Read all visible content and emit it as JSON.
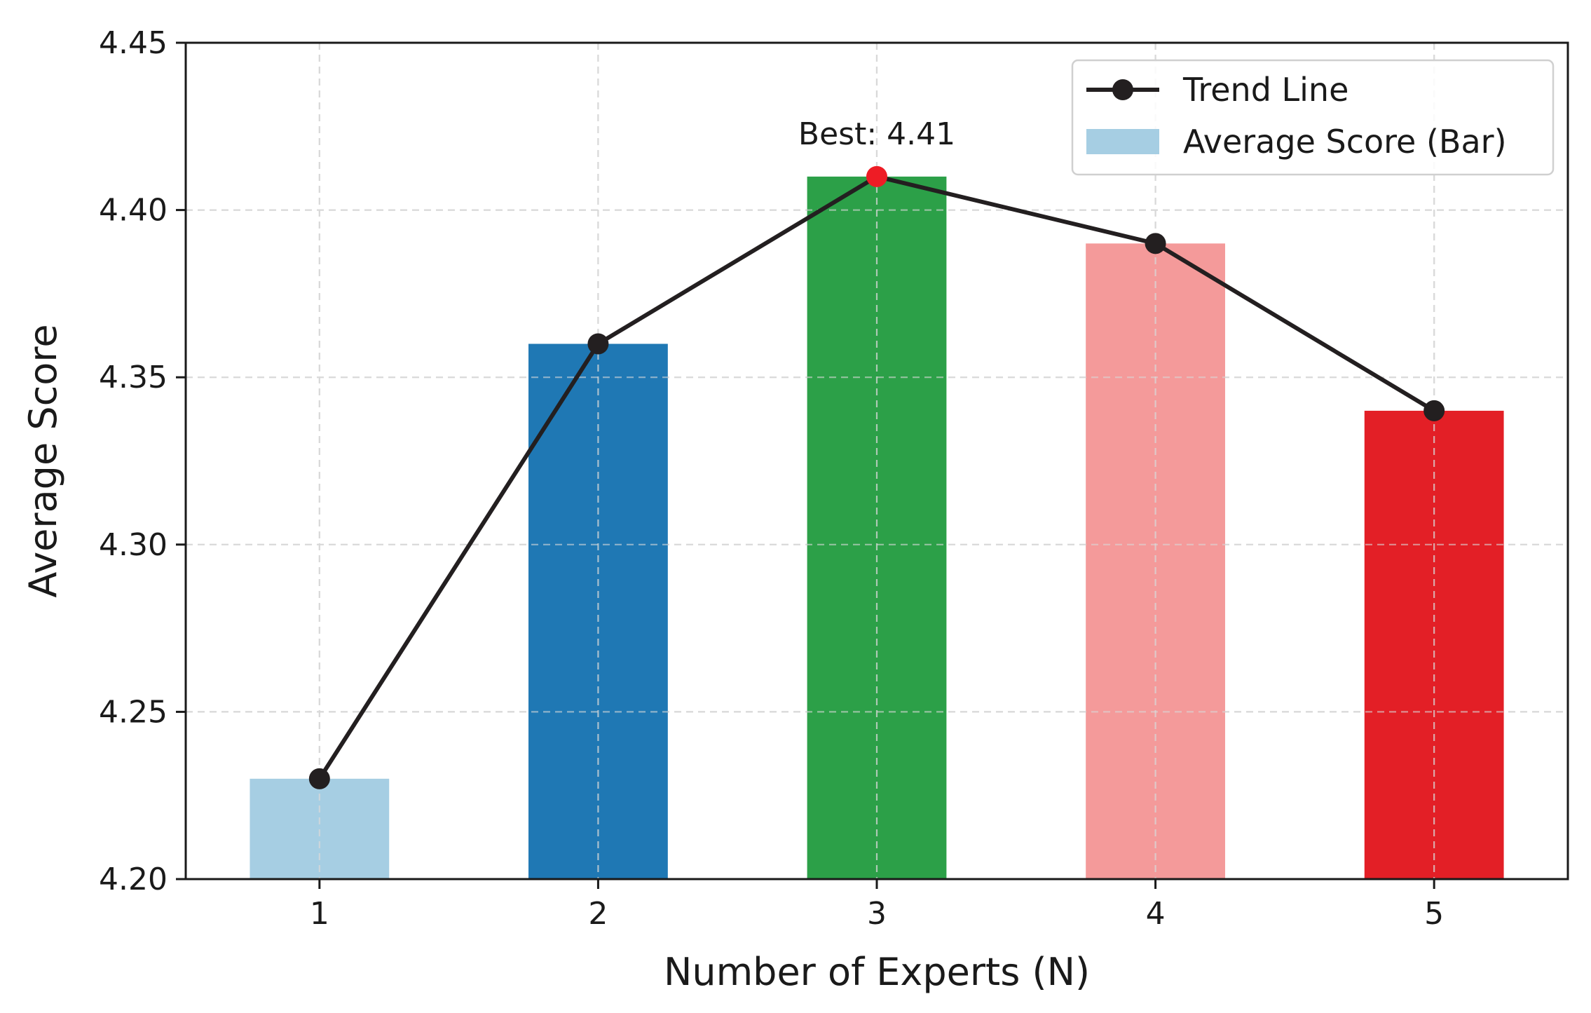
{
  "chart_data": {
    "type": "bar",
    "categories": [
      "1",
      "2",
      "3",
      "4",
      "5"
    ],
    "x": [
      1,
      2,
      3,
      4,
      5
    ],
    "values": [
      4.23,
      4.36,
      4.41,
      4.39,
      4.34
    ],
    "bar_colors": [
      "#a6cee3",
      "#1f78b4",
      "#2ca048",
      "#f49a9a",
      "#e31f26"
    ],
    "series": [
      {
        "name": "Trend Line",
        "type": "line",
        "values": [
          4.23,
          4.36,
          4.41,
          4.39,
          4.34
        ],
        "color": "#231f20",
        "marker": "circle"
      },
      {
        "name": "Average Score (Bar)",
        "type": "bar",
        "values": [
          4.23,
          4.36,
          4.41,
          4.39,
          4.34
        ],
        "color": "#a6cee3"
      }
    ],
    "highlight": {
      "index": 2,
      "color": "#ee1c25"
    },
    "annotation": {
      "text": "Best: 4.41",
      "x": 3,
      "y": 4.41
    },
    "xlabel": "Number of Experts (N)",
    "ylabel": "Average Score",
    "ylim": [
      4.2,
      4.45
    ],
    "xlim": [
      0.52,
      5.48
    ],
    "yticks": [
      "4.20",
      "4.25",
      "4.30",
      "4.35",
      "4.40",
      "4.45"
    ],
    "ytick_values": [
      4.2,
      4.25,
      4.3,
      4.35,
      4.4,
      4.45
    ],
    "xticks": [
      "1",
      "2",
      "3",
      "4",
      "5"
    ],
    "grid": true,
    "legend_position": "top-right"
  }
}
